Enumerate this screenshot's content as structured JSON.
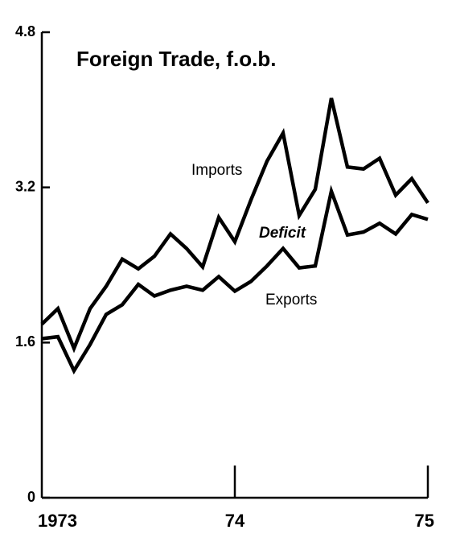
{
  "chart_data": {
    "type": "line",
    "title": "Foreign Trade, f.o.b.",
    "categories": [
      "1973",
      null,
      null,
      null,
      null,
      null,
      null,
      null,
      null,
      null,
      null,
      null,
      "74",
      null,
      null,
      null,
      null,
      null,
      null,
      null,
      null,
      null,
      null,
      null,
      "75"
    ],
    "series": [
      {
        "name": "Imports",
        "color": "#000000",
        "values": [
          1.79,
          1.95,
          1.54,
          1.95,
          2.18,
          2.46,
          2.36,
          2.49,
          2.72,
          2.57,
          2.38,
          2.89,
          2.64,
          3.07,
          3.47,
          3.76,
          2.91,
          3.18,
          4.12,
          3.41,
          3.39,
          3.5,
          3.12,
          3.29,
          3.04
        ]
      },
      {
        "name": "Exports",
        "color": "#000000",
        "values": [
          1.64,
          1.66,
          1.31,
          1.58,
          1.89,
          1.99,
          2.2,
          2.08,
          2.14,
          2.18,
          2.14,
          2.28,
          2.13,
          2.23,
          2.39,
          2.57,
          2.37,
          2.39,
          3.16,
          2.71,
          2.74,
          2.83,
          2.72,
          2.92,
          2.87
        ]
      }
    ],
    "annotations": [
      "Deficit"
    ],
    "ylim": [
      0,
      4.8
    ],
    "yticks": [
      0,
      1.6,
      3.2,
      4.8
    ]
  }
}
